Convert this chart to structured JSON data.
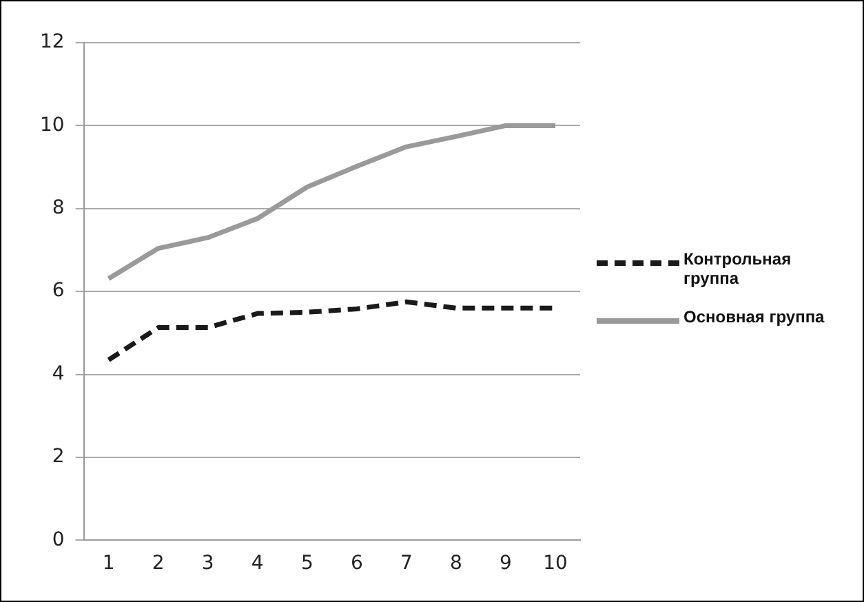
{
  "chart_data": {
    "type": "line",
    "categories": [
      "1",
      "2",
      "3",
      "4",
      "5",
      "6",
      "7",
      "8",
      "9",
      "10"
    ],
    "series": [
      {
        "name": "Контрольная группа",
        "color": "#1a1a1a",
        "line_style": "dashed",
        "values": [
          4.35,
          5.13,
          5.13,
          5.47,
          5.5,
          5.58,
          5.75,
          5.6,
          5.6,
          5.6
        ]
      },
      {
        "name": "Основная группа",
        "color": "#9a9a9a",
        "line_style": "solid",
        "values": [
          6.31,
          7.04,
          7.3,
          7.76,
          8.52,
          9.02,
          9.49,
          9.74,
          10.0,
          10.0
        ]
      }
    ],
    "ylim": [
      0,
      12
    ],
    "yticks": [
      0,
      2,
      4,
      6,
      8,
      10,
      12
    ],
    "grid": "y",
    "legend": "right",
    "marker": "none"
  }
}
